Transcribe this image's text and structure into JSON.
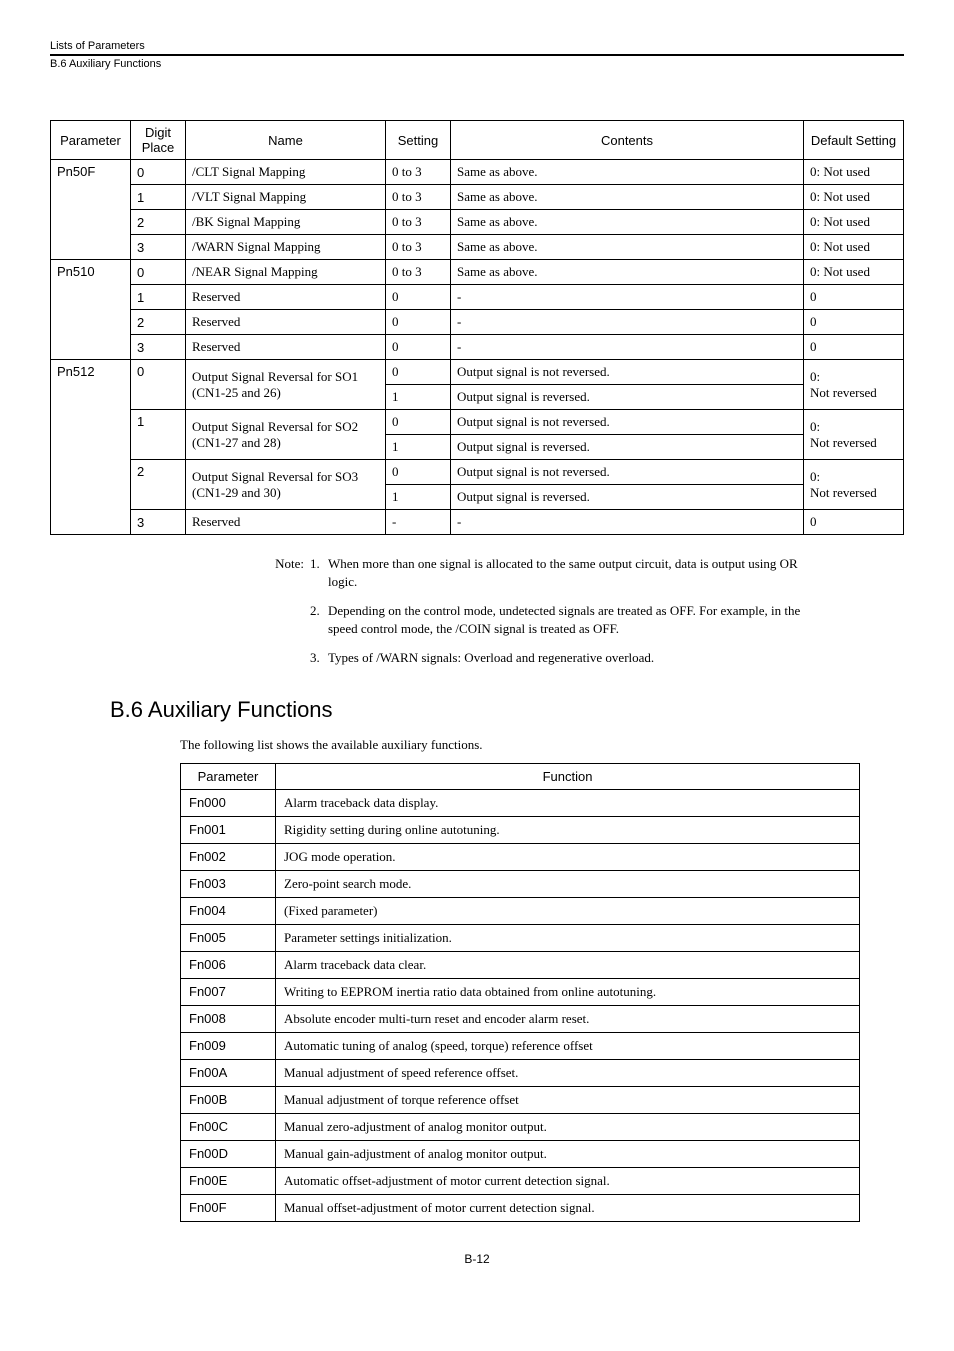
{
  "header": {
    "category": "Lists of Parameters",
    "section": "B.6  Auxiliary Functions"
  },
  "paramTable": {
    "headers": {
      "parameter": "Parameter",
      "digit": "Digit Place",
      "name": "Name",
      "setting": "Setting",
      "contents": "Contents",
      "default": "Default Setting"
    },
    "groups": [
      {
        "param": "Pn50F",
        "rows": [
          {
            "digit": "0",
            "name": "/CLT Signal Mapping",
            "setting": "0 to 3",
            "contents": "Same as above.",
            "default": "0: Not used"
          },
          {
            "digit": "1",
            "name": "/VLT Signal Mapping",
            "setting": "0 to 3",
            "contents": "Same as above.",
            "default": "0: Not used"
          },
          {
            "digit": "2",
            "name": "/BK Signal Mapping",
            "setting": "0 to 3",
            "contents": "Same as above.",
            "default": "0: Not used"
          },
          {
            "digit": "3",
            "name": "/WARN Signal Mapping",
            "setting": "0 to 3",
            "contents": "Same as above.",
            "default": "0: Not used"
          }
        ]
      },
      {
        "param": "Pn510",
        "rows": [
          {
            "digit": "0",
            "name": "/NEAR Signal Mapping",
            "setting": "0 to 3",
            "contents": "Same as above.",
            "default": "0: Not used"
          },
          {
            "digit": "1",
            "name": "Reserved",
            "setting": "0",
            "contents": "-",
            "default": "0"
          },
          {
            "digit": "2",
            "name": "Reserved",
            "setting": "0",
            "contents": "-",
            "default": "0"
          },
          {
            "digit": "3",
            "name": "Reserved",
            "setting": "0",
            "contents": "-",
            "default": "0"
          }
        ]
      },
      {
        "param": "Pn512",
        "multi": [
          {
            "digit": "0",
            "name": "Output Signal Reversal for SO1 (CN1-25 and 26)",
            "settings": [
              {
                "s": "0",
                "c": "Output signal is not reversed."
              },
              {
                "s": "1",
                "c": "Output signal is reversed."
              }
            ],
            "default": "0:\nNot reversed"
          },
          {
            "digit": "1",
            "name": "Output Signal Reversal for SO2 (CN1-27 and 28)",
            "settings": [
              {
                "s": "0",
                "c": "Output signal is not reversed."
              },
              {
                "s": "1",
                "c": "Output signal is reversed."
              }
            ],
            "default": "0:\nNot reversed"
          },
          {
            "digit": "2",
            "name": "Output Signal Reversal for SO3 (CN1-29 and 30)",
            "settings": [
              {
                "s": "0",
                "c": "Output signal is not reversed."
              },
              {
                "s": "1",
                "c": "Output signal is reversed."
              }
            ],
            "default": "0:\nNot reversed"
          }
        ],
        "tail": {
          "digit": "3",
          "name": "Reserved",
          "setting": "-",
          "contents": "-",
          "default": "0"
        }
      }
    ]
  },
  "notes": {
    "prefix": "Note:",
    "items": [
      {
        "n": "1.",
        "t": "When more than one signal is allocated to the same output circuit, data is output using OR logic."
      },
      {
        "n": "2.",
        "t": "Depending on the control mode, undetected signals are treated as OFF. For example, in the speed control mode, the /COIN signal is treated as OFF."
      },
      {
        "n": "3.",
        "t": "Types of /WARN signals: Overload and regenerative overload."
      }
    ]
  },
  "aux": {
    "heading": "B.6 Auxiliary Functions",
    "intro": "The following list shows the available auxiliary functions.",
    "headers": {
      "param": "Parameter",
      "func": "Function"
    },
    "rows": [
      {
        "p": "Fn000",
        "f": "Alarm traceback data display."
      },
      {
        "p": "Fn001",
        "f": "Rigidity setting during online autotuning."
      },
      {
        "p": "Fn002",
        "f": "JOG mode operation."
      },
      {
        "p": "Fn003",
        "f": "Zero-point search mode."
      },
      {
        "p": "Fn004",
        "f": "(Fixed parameter)"
      },
      {
        "p": "Fn005",
        "f": "Parameter settings initialization."
      },
      {
        "p": "Fn006",
        "f": "Alarm traceback data clear."
      },
      {
        "p": "Fn007",
        "f": "Writing to EEPROM inertia ratio data obtained from online autotuning."
      },
      {
        "p": "Fn008",
        "f": "Absolute encoder multi-turn reset and encoder alarm reset."
      },
      {
        "p": "Fn009",
        "f": "Automatic tuning of analog (speed, torque) reference offset"
      },
      {
        "p": "Fn00A",
        "f": "Manual adjustment of speed reference offset."
      },
      {
        "p": "Fn00B",
        "f": "Manual adjustment of torque reference offset"
      },
      {
        "p": "Fn00C",
        "f": "Manual zero-adjustment of analog monitor output."
      },
      {
        "p": "Fn00D",
        "f": "Manual gain-adjustment of analog monitor output."
      },
      {
        "p": "Fn00E",
        "f": "Automatic offset-adjustment of motor current detection signal."
      },
      {
        "p": "Fn00F",
        "f": "Manual offset-adjustment of motor current detection signal."
      }
    ]
  },
  "pageNum": "B-12"
}
